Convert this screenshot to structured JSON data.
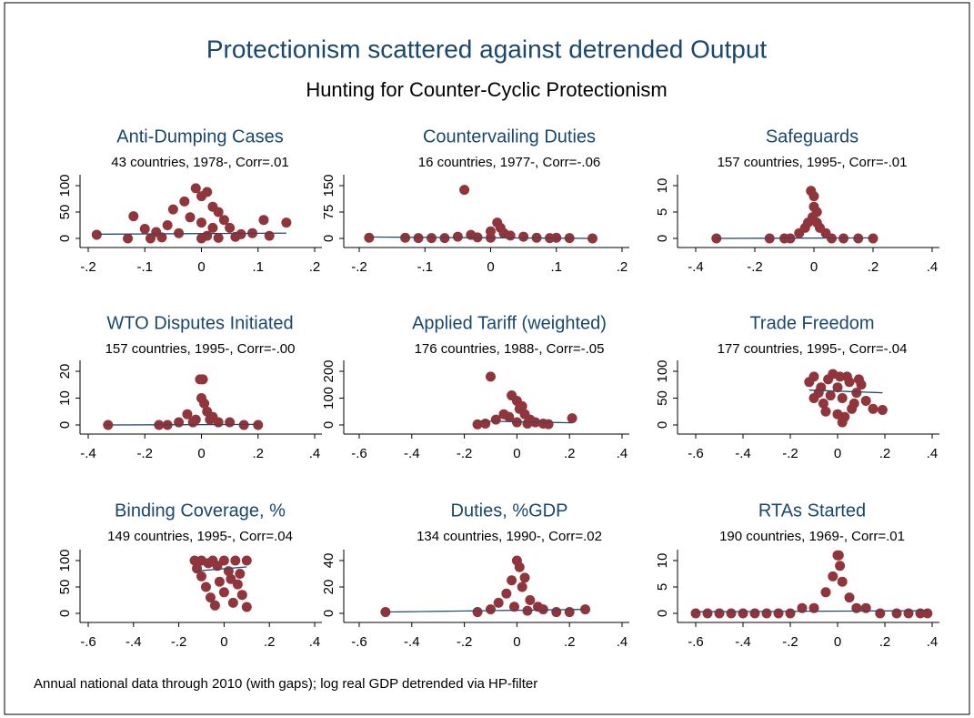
{
  "title": "Protectionism scattered against detrended Output",
  "subtitle": "Hunting for Counter-Cyclic Protectionism",
  "note": "Annual national data through 2010 (with gaps); log real GDP detrended via HP-filter",
  "chart_data": [
    {
      "type": "scatter",
      "title": "Anti-Dumping Cases",
      "subtitle": "43 countries, 1978-, Corr=.01",
      "color": "#90353b",
      "x": [
        -0.185,
        -0.12,
        -0.13,
        -0.1,
        -0.08,
        -0.06,
        -0.05,
        -0.03,
        -0.01,
        0,
        0.01,
        0.02,
        0.03,
        0.04,
        0.05,
        0.07,
        0.09,
        0.11,
        0.15,
        0.12,
        -0.02,
        0,
        0.02,
        -0.04,
        0.01,
        0.06,
        -0.07,
        0,
        0.03,
        -0.09
      ],
      "values": [
        7,
        42,
        0,
        18,
        12,
        25,
        55,
        70,
        95,
        80,
        88,
        60,
        50,
        35,
        20,
        8,
        10,
        35,
        30,
        5,
        40,
        30,
        20,
        10,
        5,
        3,
        2,
        0,
        1,
        0
      ],
      "fit": {
        "x": [
          -0.185,
          0.15
        ],
        "values": [
          8,
          10
        ],
        "color": "#1a476f"
      },
      "xlim": [
        -0.2,
        0.2
      ],
      "xticks": [
        {
          "value": -0.2,
          "label": "-.2"
        },
        {
          "value": -0.1,
          "label": "-.1"
        },
        0,
        {
          "value": 0.1,
          "label": ".1"
        },
        {
          "value": 0.2,
          "label": ".2"
        }
      ],
      "ylim": [
        0,
        100
      ],
      "yticks": [
        0,
        50,
        100
      ]
    },
    {
      "type": "scatter",
      "title": "Countervailing Duties",
      "subtitle": "16 countries, 1977-, Corr=-.06",
      "color": "#90353b",
      "x": [
        -0.185,
        -0.13,
        -0.11,
        -0.09,
        -0.07,
        -0.04,
        -0.03,
        -0.02,
        0,
        0.01,
        0.015,
        0.02,
        0.03,
        0.05,
        0.07,
        0.09,
        0.1,
        0.12,
        0.155,
        -0.05,
        0
      ],
      "values": [
        2,
        2,
        1,
        1,
        1,
        138,
        10,
        3,
        20,
        45,
        30,
        15,
        8,
        5,
        2,
        1,
        2,
        1,
        0,
        5,
        2
      ],
      "fit": {
        "x": [
          -0.185,
          0.155
        ],
        "values": [
          4,
          0
        ],
        "color": "#1a476f"
      },
      "xlim": [
        -0.2,
        0.2
      ],
      "xticks": [
        {
          "value": -0.2,
          "label": "-.2"
        },
        {
          "value": -0.1,
          "label": "-.1"
        },
        0,
        {
          "value": 0.1,
          "label": ".1"
        },
        {
          "value": 0.2,
          "label": ".2"
        }
      ],
      "ylim": [
        0,
        150
      ],
      "yticks": [
        0,
        75,
        150
      ]
    },
    {
      "type": "scatter",
      "title": "Safeguards",
      "subtitle": "157 countries, 1995-, Corr=-.01",
      "color": "#90353b",
      "x": [
        -0.33,
        -0.15,
        -0.1,
        -0.05,
        -0.02,
        -0.01,
        0,
        0.01,
        0,
        -0.005,
        0.02,
        0.04,
        0.06,
        0.1,
        0.15,
        0.2,
        -0.08,
        0.01,
        -0.03
      ],
      "values": [
        0,
        0,
        0,
        1,
        3,
        9,
        8,
        5,
        6,
        4,
        2,
        1,
        0,
        0,
        0,
        0,
        0,
        3,
        2
      ],
      "fit": {
        "x": [
          -0.33,
          0.2
        ],
        "values": [
          0,
          0.1
        ],
        "color": "#1a476f"
      },
      "xlim": [
        -0.4,
        0.4
      ],
      "xticks": [
        {
          "value": -0.4,
          "label": "-.4"
        },
        {
          "value": -0.2,
          "label": "-.2"
        },
        0,
        {
          "value": 0.2,
          "label": ".2"
        },
        {
          "value": 0.4,
          "label": ".4"
        }
      ],
      "ylim": [
        0,
        10
      ],
      "yticks": [
        0,
        5,
        10
      ]
    },
    {
      "type": "scatter",
      "title": "WTO Disputes Initiated",
      "subtitle": "157 countries, 1995-, Corr=-.00",
      "color": "#90353b",
      "x": [
        -0.33,
        -0.15,
        -0.12,
        -0.08,
        -0.05,
        -0.02,
        0,
        0.005,
        -0.005,
        0.01,
        0.02,
        0.04,
        0.06,
        0.1,
        0.15,
        0.2,
        0.03,
        -0.03
      ],
      "values": [
        0,
        0,
        0,
        1,
        4,
        2,
        10,
        17,
        17,
        8,
        5,
        3,
        1,
        1,
        0,
        0,
        2,
        1
      ],
      "fit": {
        "x": [
          -0.33,
          0.2
        ],
        "values": [
          0,
          0.2
        ],
        "color": "#1a476f"
      },
      "xlim": [
        -0.4,
        0.4
      ],
      "xticks": [
        {
          "value": -0.4,
          "label": "-.4"
        },
        {
          "value": -0.2,
          "label": "-.2"
        },
        0,
        {
          "value": 0.2,
          "label": ".2"
        },
        {
          "value": 0.4,
          "label": ".4"
        }
      ],
      "ylim": [
        0,
        20
      ],
      "yticks": [
        0,
        10,
        20
      ]
    },
    {
      "type": "scatter",
      "title": "Applied Tariff (weighted)",
      "subtitle": "176 countries, 1988-, Corr=-.05",
      "color": "#90353b",
      "x": [
        -0.15,
        -0.1,
        -0.08,
        -0.05,
        -0.03,
        -0.02,
        0,
        0.01,
        0.02,
        0.03,
        0.05,
        0.07,
        0.1,
        0.12,
        0.21,
        -0.12,
        0,
        0.04
      ],
      "values": [
        2,
        180,
        20,
        40,
        30,
        110,
        90,
        60,
        70,
        40,
        20,
        10,
        5,
        3,
        25,
        5,
        10,
        5
      ],
      "fit": {
        "x": [
          -0.15,
          0.21
        ],
        "values": [
          15,
          8
        ],
        "color": "#1a476f"
      },
      "xlim": [
        -0.6,
        0.4
      ],
      "xticks": [
        {
          "value": -0.6,
          "label": "-.6"
        },
        {
          "value": -0.4,
          "label": "-.4"
        },
        {
          "value": -0.2,
          "label": "-.2"
        },
        0,
        {
          "value": 0.2,
          "label": ".2"
        },
        {
          "value": 0.4,
          "label": ".4"
        }
      ],
      "ylim": [
        0,
        200
      ],
      "yticks": [
        0,
        100,
        200
      ]
    },
    {
      "type": "scatter",
      "title": "Trade Freedom",
      "subtitle": "177 countries, 1995-, Corr=-.04",
      "color": "#90353b",
      "x": [
        -0.12,
        -0.1,
        -0.08,
        -0.06,
        -0.04,
        -0.02,
        0,
        0.02,
        0.04,
        0.06,
        0.08,
        0.1,
        0.12,
        0.15,
        0.19,
        -0.1,
        -0.05,
        0,
        0.03,
        0.05,
        -0.07,
        0.01,
        0.07,
        -0.03,
        0.02,
        0.09
      ],
      "values": [
        80,
        90,
        60,
        40,
        85,
        95,
        70,
        50,
        90,
        30,
        60,
        75,
        45,
        30,
        28,
        50,
        25,
        20,
        15,
        80,
        70,
        90,
        40,
        55,
        5,
        85
      ],
      "fit": {
        "x": [
          -0.12,
          0.19
        ],
        "values": [
          65,
          60
        ],
        "color": "#1a476f"
      },
      "xlim": [
        -0.6,
        0.4
      ],
      "xticks": [
        {
          "value": -0.6,
          "label": "-.6"
        },
        {
          "value": -0.4,
          "label": "-.4"
        },
        {
          "value": -0.2,
          "label": "-.2"
        },
        0,
        {
          "value": 0.2,
          "label": ".2"
        },
        {
          "value": 0.4,
          "label": ".4"
        }
      ],
      "ylim": [
        0,
        100
      ],
      "yticks": [
        0,
        50,
        100
      ]
    },
    {
      "type": "scatter",
      "title": "Binding Coverage, %",
      "subtitle": "149 countries, 1995-, Corr=.04",
      "color": "#90353b",
      "x": [
        -0.13,
        -0.1,
        -0.05,
        0,
        0.05,
        0.1,
        -0.12,
        -0.1,
        -0.08,
        -0.06,
        -0.04,
        -0.02,
        0,
        0.02,
        0.04,
        0.06,
        0.08,
        0.1,
        -0.03,
        0.03,
        -0.07,
        0.07
      ],
      "values": [
        100,
        100,
        100,
        100,
        100,
        100,
        85,
        70,
        50,
        30,
        15,
        60,
        40,
        80,
        20,
        55,
        35,
        12,
        90,
        65,
        95,
        75
      ],
      "fit": {
        "x": [
          -0.13,
          0.1
        ],
        "values": [
          80,
          88
        ],
        "color": "#1a476f"
      },
      "xlim": [
        -0.6,
        0.4
      ],
      "xticks": [
        {
          "value": -0.6,
          "label": "-.6"
        },
        {
          "value": -0.4,
          "label": "-.4"
        },
        {
          "value": -0.2,
          "label": "-.2"
        },
        0,
        {
          "value": 0.2,
          "label": ".2"
        },
        {
          "value": 0.4,
          "label": ".4"
        }
      ],
      "ylim": [
        0,
        100
      ],
      "yticks": [
        0,
        50,
        100
      ]
    },
    {
      "type": "scatter",
      "title": "Duties, %GDP",
      "subtitle": "134 countries, 1990-, Corr=.02",
      "color": "#90353b",
      "x": [
        -0.5,
        -0.15,
        -0.1,
        -0.07,
        -0.04,
        -0.02,
        0,
        0.01,
        0.02,
        0.03,
        0.05,
        0.08,
        0.1,
        0.15,
        0.2,
        0.26,
        -0.01,
        0.04
      ],
      "values": [
        1,
        1,
        3,
        8,
        15,
        25,
        40,
        35,
        20,
        27,
        10,
        5,
        3,
        1,
        1,
        3,
        5,
        2
      ],
      "fit": {
        "x": [
          -0.5,
          0.26
        ],
        "values": [
          1,
          3
        ],
        "color": "#1a476f"
      },
      "xlim": [
        -0.6,
        0.4
      ],
      "xticks": [
        {
          "value": -0.6,
          "label": "-.6"
        },
        {
          "value": -0.4,
          "label": "-.4"
        },
        {
          "value": -0.2,
          "label": "-.2"
        },
        0,
        {
          "value": 0.2,
          "label": ".2"
        },
        {
          "value": 0.4,
          "label": ".4"
        }
      ],
      "ylim": [
        0,
        40
      ],
      "yticks": [
        0,
        20,
        40
      ]
    },
    {
      "type": "scatter",
      "title": "RTAs Started",
      "subtitle": "190 countries, 1969-, Corr=.01",
      "color": "#90353b",
      "x": [
        -0.6,
        -0.55,
        -0.5,
        -0.45,
        -0.4,
        -0.35,
        -0.3,
        -0.25,
        -0.2,
        -0.15,
        -0.1,
        -0.05,
        -0.02,
        0,
        0.005,
        0.01,
        0.02,
        0.05,
        0.08,
        0.12,
        0.18,
        0.25,
        0.3,
        0.35,
        0.38
      ],
      "values": [
        0,
        0,
        0,
        0,
        0,
        0,
        0,
        0,
        0,
        1,
        1,
        4,
        7,
        11,
        11,
        9,
        6,
        3,
        1,
        1,
        0,
        0,
        0,
        0,
        0
      ],
      "fit": {
        "x": [
          -0.6,
          0.38
        ],
        "values": [
          0.3,
          0.5
        ],
        "color": "#1a476f"
      },
      "xlim": [
        -0.6,
        0.4
      ],
      "xticks": [
        {
          "value": -0.6,
          "label": "-.6"
        },
        {
          "value": -0.4,
          "label": "-.4"
        },
        {
          "value": -0.2,
          "label": "-.2"
        },
        0,
        {
          "value": 0.2,
          "label": ".2"
        },
        {
          "value": 0.4,
          "label": ".4"
        }
      ],
      "ylim": [
        0,
        10
      ],
      "yticks": [
        0,
        5,
        10
      ]
    }
  ]
}
